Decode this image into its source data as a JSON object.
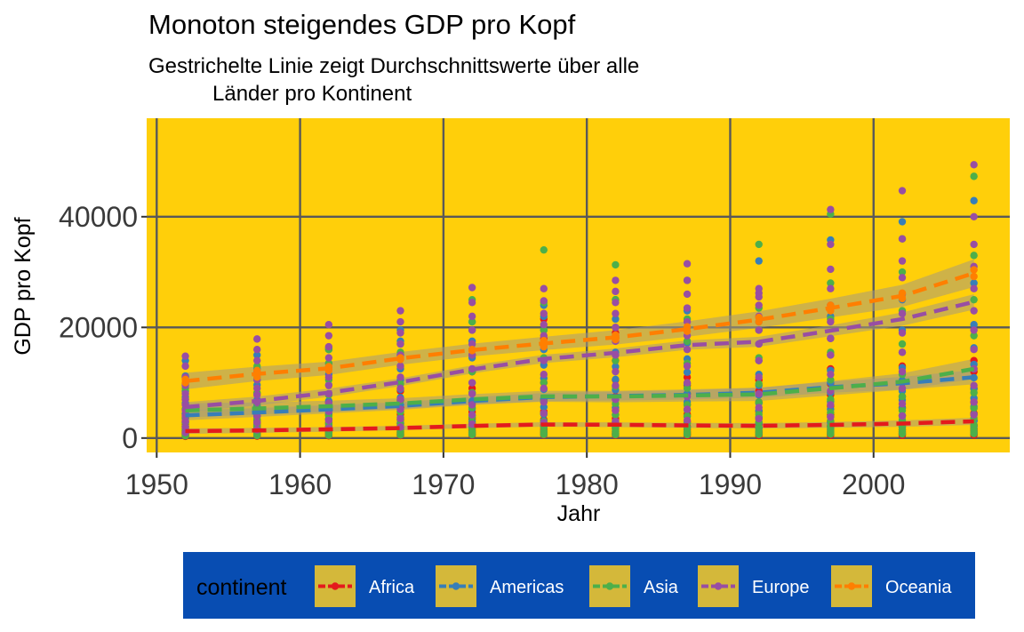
{
  "chart_data": {
    "type": "scatter",
    "title": "Monoton steigendes GDP pro Kopf",
    "subtitle_lines": [
      "Gestrichelte Linie zeigt Durchschnittswerte über alle",
      "Länder pro Kontinent"
    ],
    "xlabel": "Jahr",
    "ylabel": "GDP pro Kopf",
    "xlim": [
      1949.3,
      2009.5
    ],
    "ylim": [
      -2600,
      57800
    ],
    "x_ticks": [
      1950,
      1960,
      1970,
      1980,
      1990,
      2000
    ],
    "x_tick_labels": [
      "1950",
      "1960",
      "1970",
      "1980",
      "1990",
      "2000"
    ],
    "y_ticks": [
      0,
      20000,
      40000
    ],
    "y_tick_labels": [
      "0",
      "20000",
      "40000"
    ],
    "grid": true,
    "legend": {
      "title": "continent",
      "position": "bottom",
      "entries": [
        "Africa",
        "Americas",
        "Asia",
        "Europe",
        "Oceania"
      ]
    },
    "colors": {
      "panel": "#FFCF0A",
      "grid": "#595959",
      "ribbon": "#A69A7C",
      "legend_bg": "#084DB2",
      "legend_key": "#D4B83A",
      "Africa": "#E41A1C",
      "Americas": "#377EB8",
      "Asia": "#4DAF4A",
      "Europe": "#984EA3",
      "Oceania": "#FF7F00"
    },
    "years": [
      1952,
      1957,
      1962,
      1967,
      1972,
      1977,
      1982,
      1987,
      1992,
      1997,
      2002,
      2007
    ],
    "series": [
      {
        "name": "Africa",
        "trend": [
          1250,
          1380,
          1580,
          1810,
          2200,
          2450,
          2410,
          2290,
          2220,
          2380,
          2620,
          3030
        ],
        "ribbon_half": [
          500,
          450,
          420,
          400,
          400,
          420,
          430,
          450,
          480,
          520,
          580,
          650
        ],
        "points": [
          [
            300,
            500,
            700,
            900,
            1100,
            1400,
            1700,
            2100,
            2500,
            3000,
            3600,
            4300
          ],
          [
            350,
            520,
            750,
            950,
            1200,
            1500,
            1800,
            2200,
            2700,
            3300,
            4000,
            5000
          ],
          [
            400,
            550,
            800,
            1000,
            1300,
            1700,
            2100,
            2700,
            3400,
            4200,
            5200,
            6500
          ],
          [
            450,
            600,
            850,
            1100,
            1500,
            2000,
            2600,
            3300,
            4300,
            5500,
            6800,
            8500
          ],
          [
            500,
            700,
            1000,
            1400,
            1900,
            2600,
            3500,
            4700,
            6500,
            9000,
            12000,
            15000
          ],
          [
            550,
            750,
            1100,
            1600,
            2300,
            3300,
            4800,
            7000,
            10000,
            14000,
            18000,
            21500
          ],
          [
            500,
            650,
            900,
            1200,
            1700,
            2400,
            3500,
            5000,
            7500,
            10500,
            14000,
            19000
          ],
          [
            450,
            620,
            850,
            1100,
            1500,
            2100,
            3000,
            4300,
            6000,
            8000,
            9500,
            11000
          ],
          [
            450,
            600,
            800,
            1000,
            1300,
            1800,
            2500,
            3500,
            4800,
            6500,
            8500,
            10500
          ],
          [
            500,
            650,
            900,
            1200,
            1600,
            2200,
            3000,
            4200,
            5800,
            7800,
            9800,
            12500
          ],
          [
            500,
            650,
            900,
            1200,
            1500,
            2000,
            2800,
            4000,
            5500,
            7500,
            10000,
            13000
          ],
          [
            550,
            700,
            950,
            1300,
            1700,
            2300,
            3200,
            4500,
            6500,
            9000,
            12000,
            14000
          ]
        ]
      },
      {
        "name": "Americas",
        "trend": [
          4100,
          4620,
          5200,
          5800,
          6700,
          7400,
          7600,
          7800,
          8200,
          9200,
          9900,
          11000
        ],
        "ribbon_half": [
          900,
          800,
          750,
          700,
          700,
          750,
          800,
          850,
          900,
          1000,
          1150,
          1300
        ],
        "points": [
          [
            1400,
            2000,
            2800,
            3600,
            4400,
            5300,
            6300,
            7400,
            8500,
            9800,
            11200,
            14000
          ],
          [
            1500,
            2200,
            3000,
            3900,
            4800,
            5800,
            6900,
            8100,
            9600,
            11000,
            12500,
            15000
          ],
          [
            1700,
            2500,
            3400,
            4400,
            5500,
            6700,
            8000,
            9600,
            11500,
            13500,
            16000,
            16200
          ],
          [
            1800,
            2700,
            3700,
            4800,
            6000,
            7300,
            8800,
            10500,
            12500,
            15000,
            17500,
            19500
          ],
          [
            2000,
            3000,
            4100,
            5300,
            6700,
            8200,
            10000,
            12000,
            14500,
            17500,
            19500,
            21000
          ],
          [
            2100,
            3100,
            4300,
            5600,
            7100,
            8800,
            10800,
            13200,
            16000,
            19500,
            22000,
            24000
          ],
          [
            2000,
            3000,
            4200,
            5500,
            7000,
            8700,
            10600,
            12900,
            15500,
            18500,
            21500,
            25000
          ],
          [
            1900,
            2800,
            3900,
            5100,
            6500,
            8000,
            9800,
            11900,
            14300,
            17200,
            20000,
            23000
          ],
          [
            1800,
            2700,
            3800,
            5000,
            6300,
            7800,
            9500,
            11500,
            14000,
            17000,
            21000,
            32000
          ],
          [
            1900,
            2800,
            3900,
            5200,
            6600,
            8200,
            10000,
            12200,
            15000,
            18000,
            22000,
            35800
          ],
          [
            2000,
            3000,
            4100,
            5400,
            6900,
            8500,
            10400,
            12700,
            15500,
            19500,
            25000,
            39100
          ],
          [
            2100,
            3100,
            4300,
            5700,
            7200,
            8900,
            10900,
            13300,
            16300,
            20500,
            28000,
            42900
          ]
        ]
      },
      {
        "name": "Asia",
        "trend": [
          5000,
          5350,
          5750,
          6250,
          7000,
          7550,
          7500,
          7700,
          7900,
          9000,
          10200,
          12500
        ],
        "ribbon_half": [
          1300,
          1100,
          1000,
          950,
          950,
          1000,
          1050,
          1100,
          1200,
          1300,
          1500,
          1800
        ],
        "points": [
          [
            400,
            600,
            900,
            1200,
            1600,
            2100,
            2800,
            3800,
            5200,
            7000,
            9000,
            11000
          ],
          [
            450,
            650,
            950,
            1300,
            1800,
            2500,
            3400,
            4600,
            6200,
            8200,
            10500,
            13000
          ],
          [
            500,
            700,
            1000,
            1400,
            2000,
            2800,
            4000,
            5600,
            7800,
            10500,
            13500,
            16000
          ],
          [
            550,
            750,
            1100,
            1600,
            2300,
            3300,
            4700,
            6800,
            9800,
            13000,
            15500,
            17000
          ],
          [
            600,
            850,
            1200,
            1800,
            2600,
            3800,
            5500,
            8200,
            12000,
            16000,
            21000,
            25000
          ],
          [
            650,
            900,
            1300,
            2000,
            3000,
            4500,
            6700,
            10000,
            14500,
            19500,
            24500,
            34000
          ],
          [
            600,
            850,
            1300,
            1900,
            2800,
            4200,
            6200,
            9300,
            14000,
            20000,
            25000,
            31300
          ],
          [
            600,
            850,
            1200,
            1800,
            2700,
            4000,
            6000,
            9000,
            13500,
            17500,
            21500,
            28500
          ],
          [
            650,
            900,
            1300,
            1900,
            2900,
            4300,
            6500,
            9800,
            14500,
            19500,
            23500,
            35000
          ],
          [
            700,
            1000,
            1400,
            2100,
            3100,
            4600,
            7000,
            10500,
            15500,
            21500,
            28000,
            40500
          ],
          [
            750,
            1050,
            1500,
            2200,
            3300,
            5000,
            7500,
            11500,
            17000,
            23000,
            30000,
            36000
          ],
          [
            800,
            1100,
            1600,
            2400,
            3600,
            5400,
            8200,
            12500,
            18500,
            25000,
            33000,
            47300
          ]
        ]
      },
      {
        "name": "Europe",
        "trend": [
          5600,
          6700,
          8200,
          10100,
          12400,
          14300,
          15400,
          16800,
          17400,
          19400,
          21500,
          24600
        ],
        "ribbon_half": [
          900,
          800,
          750,
          720,
          720,
          750,
          800,
          850,
          900,
          1000,
          1200,
          1400
        ],
        "points": [
          [
            1000,
            2000,
            3000,
            4000,
            5000,
            6000,
            7000,
            8000,
            9500,
            11000,
            13000,
            14800
          ],
          [
            1500,
            2800,
            4000,
            5200,
            6500,
            7800,
            9000,
            10500,
            12000,
            14000,
            16000,
            17900
          ],
          [
            1800,
            3200,
            4800,
            6300,
            8000,
            9500,
            11000,
            12800,
            14500,
            16500,
            18500,
            20500
          ],
          [
            2000,
            3500,
            5200,
            7000,
            9000,
            11000,
            13000,
            15000,
            17000,
            19000,
            21000,
            23000
          ],
          [
            2500,
            4200,
            6000,
            8000,
            10000,
            12500,
            15000,
            17000,
            19500,
            22000,
            24500,
            27200
          ],
          [
            2800,
            4500,
            6500,
            9000,
            11500,
            14000,
            16500,
            18500,
            20500,
            22500,
            24800,
            27000
          ],
          [
            3000,
            5000,
            7000,
            9500,
            12000,
            15000,
            17500,
            20000,
            22500,
            24500,
            26500,
            28500
          ],
          [
            3200,
            5200,
            7500,
            10000,
            13000,
            16000,
            18500,
            21000,
            23500,
            26000,
            28500,
            31500
          ],
          [
            3500,
            5500,
            8000,
            11000,
            14000,
            17000,
            19500,
            22000,
            24000,
            25500,
            26200,
            27000
          ],
          [
            3800,
            6000,
            8500,
            11500,
            15000,
            18000,
            21000,
            24000,
            27000,
            30500,
            35000,
            41300
          ],
          [
            4000,
            6200,
            9000,
            12000,
            15500,
            19000,
            22500,
            26000,
            29000,
            32000,
            36000,
            44700
          ],
          [
            4200,
            6500,
            9500,
            12500,
            16000,
            19500,
            23000,
            27000,
            31000,
            35000,
            40000,
            49400
          ]
        ]
      },
      {
        "name": "Oceania",
        "trend": [
          10300,
          11600,
          12600,
          14400,
          15900,
          17100,
          18200,
          19700,
          21400,
          23500,
          25700,
          29800
        ],
        "ribbon_half": [
          1500,
          1300,
          1200,
          1150,
          1150,
          1200,
          1300,
          1400,
          1500,
          1700,
          2000,
          2500
        ],
        "points": [
          [
            10000,
            10600
          ],
          [
            11000,
            12200
          ],
          [
            12200,
            12900
          ],
          [
            14200,
            14500
          ],
          [
            15800,
            16000
          ],
          [
            16500,
            17600
          ],
          [
            17800,
            18600
          ],
          [
            19300,
            20100
          ],
          [
            21000,
            21800
          ],
          [
            23000,
            24000
          ],
          [
            25200,
            26200
          ],
          [
            29200,
            30400
          ]
        ]
      }
    ]
  }
}
